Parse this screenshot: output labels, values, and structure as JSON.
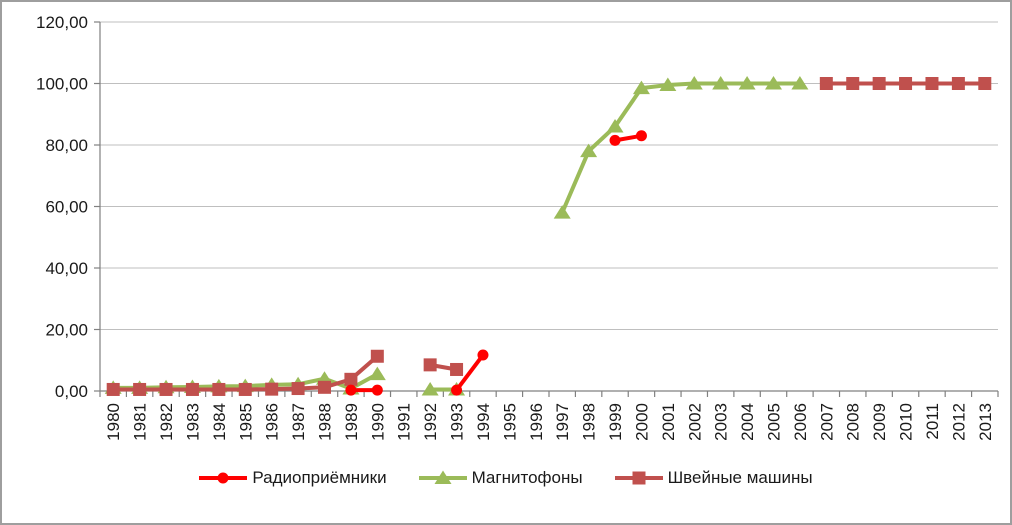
{
  "frame": {
    "background": "#FFFFFF",
    "border_color": "#9E9E9E"
  },
  "chart_data": {
    "type": "line",
    "title": "",
    "xlabel": "",
    "ylabel": "",
    "x_categories": [
      "1980",
      "1981",
      "1982",
      "1983",
      "1984",
      "1985",
      "1986",
      "1987",
      "1988",
      "1989",
      "1990",
      "1991",
      "1992",
      "1993",
      "1994",
      "1995",
      "1996",
      "1997",
      "1998",
      "1999",
      "2000",
      "2001",
      "2002",
      "2003",
      "2004",
      "2005",
      "2006",
      "2007",
      "2008",
      "2009",
      "2010",
      "2011",
      "2012",
      "2013"
    ],
    "y_axis": {
      "min": 0,
      "max": 120,
      "step": 20,
      "tick_labels": [
        "0,00",
        "20,00",
        "40,00",
        "60,00",
        "80,00",
        "100,00",
        "120,00"
      ]
    },
    "styles": {
      "gridline_color": "#BFBFBF",
      "axis_color": "#808080",
      "text_color": "#1A1A1A",
      "background": "#FFFFFF"
    },
    "grid": "horizontal",
    "legend_position": "bottom",
    "series": [
      {
        "name": "Радиоприёмники",
        "color": "#FF0000",
        "marker": "circle",
        "points": [
          [
            1989,
            0.3
          ],
          [
            1990,
            0.3
          ],
          [
            1993,
            0.3
          ],
          [
            1994,
            11.7
          ],
          [
            1999,
            81.5
          ],
          [
            2000,
            83
          ]
        ]
      },
      {
        "name": "Магнитофоны",
        "color": "#9BBB59",
        "marker": "triangle",
        "points": [
          [
            1980,
            1
          ],
          [
            1981,
            1
          ],
          [
            1982,
            1.2
          ],
          [
            1983,
            1.3
          ],
          [
            1984,
            1.5
          ],
          [
            1985,
            1.6
          ],
          [
            1986,
            2
          ],
          [
            1987,
            2.2
          ],
          [
            1988,
            4
          ],
          [
            1989,
            0.8
          ],
          [
            1990,
            5.5
          ],
          [
            1992,
            0.5
          ],
          [
            1993,
            0.5
          ],
          [
            1997,
            58
          ],
          [
            1998,
            78
          ],
          [
            1999,
            86
          ],
          [
            2000,
            98.5
          ],
          [
            2001,
            99.5
          ],
          [
            2002,
            100
          ],
          [
            2003,
            100
          ],
          [
            2004,
            100
          ],
          [
            2005,
            100
          ],
          [
            2006,
            100
          ]
        ]
      },
      {
        "name": "Швейные машины",
        "color": "#C0504D",
        "marker": "square",
        "points": [
          [
            1980,
            0.5
          ],
          [
            1981,
            0.5
          ],
          [
            1982,
            0.5
          ],
          [
            1983,
            0.5
          ],
          [
            1984,
            0.5
          ],
          [
            1985,
            0.5
          ],
          [
            1986,
            0.6
          ],
          [
            1987,
            0.8
          ],
          [
            1988,
            1.2
          ],
          [
            1989,
            3.8
          ],
          [
            1990,
            11.3
          ],
          [
            1992,
            8.5
          ],
          [
            1993,
            7
          ],
          [
            2007,
            100
          ],
          [
            2008,
            100
          ],
          [
            2009,
            100
          ],
          [
            2010,
            100
          ],
          [
            2011,
            100
          ],
          [
            2012,
            100
          ],
          [
            2013,
            100
          ]
        ]
      }
    ],
    "z_order": [
      1,
      2,
      0
    ]
  }
}
